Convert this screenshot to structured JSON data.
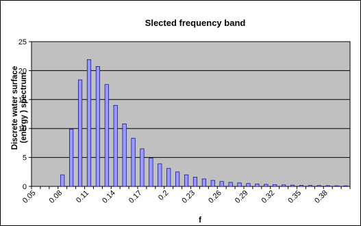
{
  "colors": {
    "plot_background": "#c0c0c0",
    "bar_fill": "#9999ff",
    "bar_stroke": "#000080",
    "gridline": "#000000",
    "frame": "#000000"
  },
  "chart_data": {
    "type": "bar",
    "title": "Slected frequency band",
    "xlabel": "f",
    "ylabel": [
      "Discrete water surface",
      "(energy ) spectrum"
    ],
    "ylim": [
      0,
      25
    ],
    "yticks": [
      0,
      5,
      10,
      15,
      20,
      25
    ],
    "grid": true,
    "legend": "none",
    "categories": [
      "0.05",
      "0.06",
      "0.07",
      "0.08",
      "0.09",
      "0.10",
      "0.11",
      "0.12",
      "0.13",
      "0.14",
      "0.15",
      "0.16",
      "0.17",
      "0.18",
      "0.19",
      "0.2",
      "0.21",
      "0.22",
      "0.23",
      "0.24",
      "0.25",
      "0.26",
      "0.27",
      "0.28",
      "0.29",
      "0.30",
      "0.31",
      "0.32",
      "0.33",
      "0.34",
      "0.35",
      "0.36",
      "0.37",
      "0.38",
      "0.39",
      "0.40"
    ],
    "tick_labels": [
      "0.05",
      "0.08",
      "0.11",
      "0.14",
      "0.17",
      "0.2",
      "0.23",
      "0.26",
      "0.29",
      "0.32",
      "0.35",
      "0.38"
    ],
    "values": [
      0,
      0,
      0,
      2.0,
      9.9,
      18.4,
      21.9,
      20.7,
      17.6,
      14.0,
      10.8,
      8.3,
      6.5,
      4.9,
      3.9,
      3.1,
      2.5,
      2.0,
      1.6,
      1.3,
      1.05,
      0.85,
      0.7,
      0.6,
      0.5,
      0.42,
      0.36,
      0.3,
      0.26,
      0.22,
      0.19,
      0.17,
      0.15,
      0.13,
      0.11,
      0.1
    ]
  }
}
